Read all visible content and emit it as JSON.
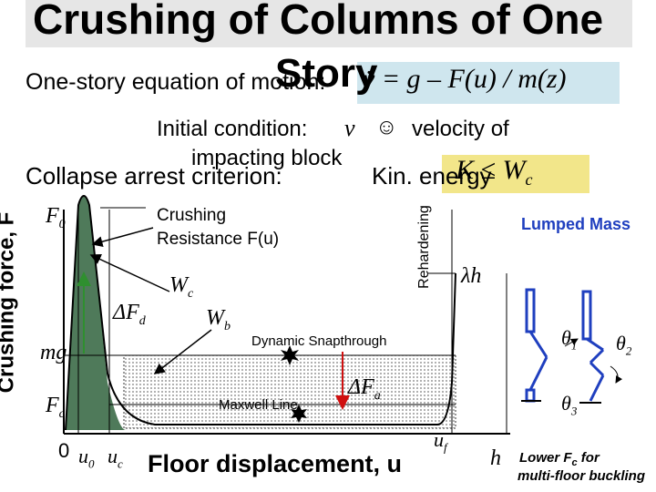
{
  "title": "Crushing of Columns of One Story",
  "title_line1": "Crushing of Columns of One",
  "title_line2": "Story",
  "equation_label": "One-story equation of motion:",
  "equation": "v̇ = g – F(u) / m(z)",
  "initial_condition_label": "Initial condition:",
  "initial_condition_value": "v",
  "initial_condition_symbol": "☺",
  "initial_condition_text": "velocity of",
  "initial_condition_text2": "impacting block",
  "collapse_label": "Collapse arrest criterion:",
  "kin_energy_label": "Kin. energy",
  "kin_energy_relation": "K ≤ W",
  "kin_energy_sub": "c",
  "y_axis_label": "Crushing force, F",
  "x_axis_label": "Floor displacement, u",
  "rehardening_label": "Rehardening",
  "lumped_mass_label": "Lumped Mass",
  "labels": {
    "F0": "F",
    "F0_sub": "0",
    "crushing_resistance_1": "Crushing",
    "crushing_resistance_2": "Resistance F(u)",
    "Wc": "W",
    "Wc_sub": "c",
    "dFd": "ΔF",
    "dFd_sub": "d",
    "Wb": "W",
    "Wb_sub": "b",
    "mg": "mg",
    "Fc": "F",
    "Fc_sub": "c",
    "zero": "0",
    "u0": "u",
    "u0_sub": "0",
    "uc": "u",
    "uc_sub": "c",
    "uf": "u",
    "uf_sub": "f",
    "h": "h",
    "lambda_h": "λh",
    "dynamic_snapthrough": "Dynamic Snapthrough",
    "maxwell_line": "Maxwell Line",
    "dFa": "ΔF",
    "dFa_sub": "a",
    "theta1": "θ",
    "theta1_sub": "1",
    "theta2": "θ",
    "theta2_sub": "2",
    "theta3": "θ",
    "theta3_sub": "3",
    "lower_fc_1": "Lower F",
    "lower_fc_sub": "c",
    "lower_fc_1b": " for",
    "lower_fc_2": "multi-floor buckling"
  },
  "colors": {
    "title_bg": "#e6e6e6",
    "equation_bg": "#cfe6ee",
    "kin_bg": "#f2e68a",
    "curve_fill": "#4f7a5a",
    "dotted_fill": "#bdbdbd",
    "lumped_mass": "#1f3fbf",
    "arrow_green": "#2f8f2f",
    "arrow_red": "#d01010"
  }
}
